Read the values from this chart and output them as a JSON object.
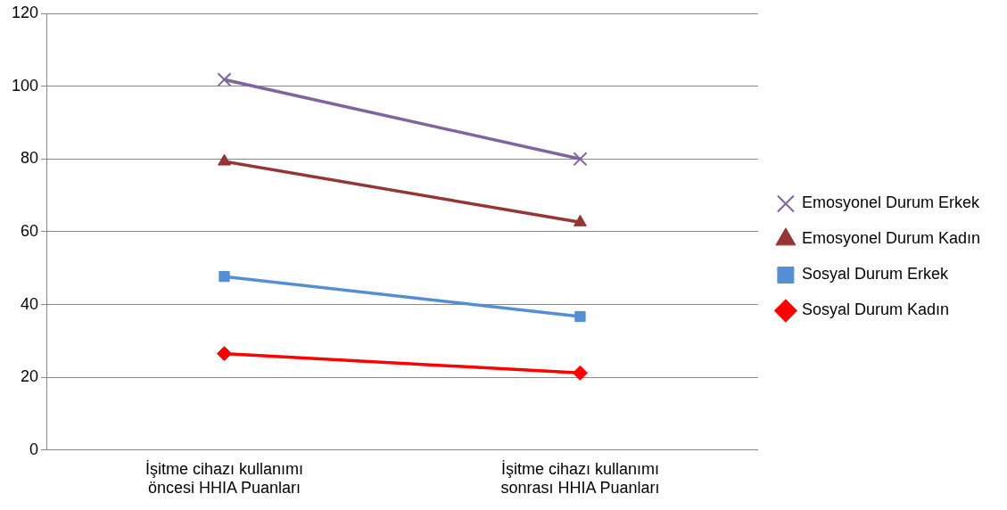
{
  "chart_data": {
    "type": "line",
    "categories": [
      "İşitme cihazı kullanımı öncesi HHIA Puanları",
      "İşitme cihazı kullanımı sonrası HHIA Puanları"
    ],
    "series": [
      {
        "name": "Emosyonel Durum Erkek",
        "color": "#8064a2",
        "marker": "cross",
        "values": [
          101.8,
          80
        ]
      },
      {
        "name": "Emosyonel Durum Kadın",
        "color": "#943634",
        "marker": "triangle",
        "values": [
          79.3,
          62.6
        ]
      },
      {
        "name": "Sosyal Durum Erkek",
        "color": "#558ed5",
        "marker": "square",
        "values": [
          47.7,
          36.7
        ]
      },
      {
        "name": "Sosyal Durum Kadın",
        "color": "#ff0000",
        "marker": "diamond",
        "values": [
          26.5,
          21.2
        ]
      }
    ],
    "ylim": [
      0,
      120
    ],
    "yticks": [
      0,
      20,
      40,
      60,
      80,
      100,
      120
    ],
    "grid": "y",
    "legend": "right"
  }
}
